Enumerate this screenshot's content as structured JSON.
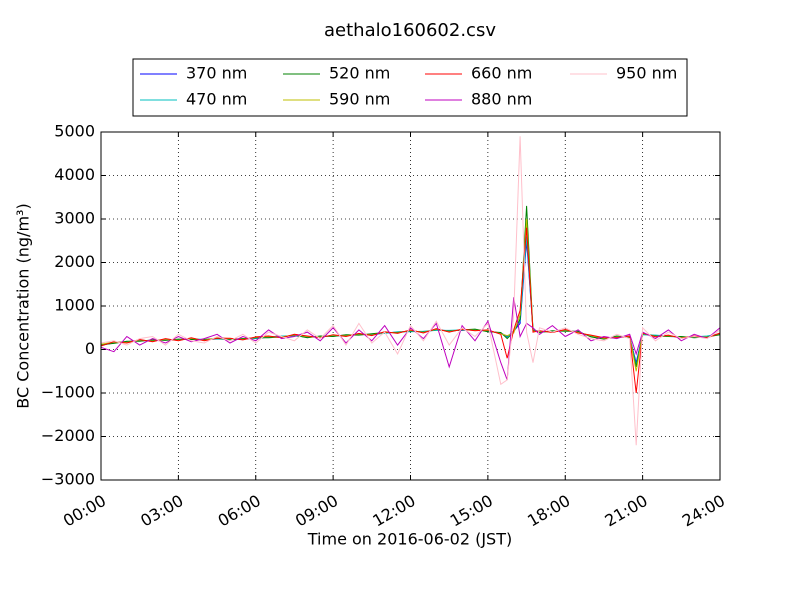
{
  "chart_data": {
    "type": "line",
    "title": "aethalo160602.csv",
    "xlabel": "Time on 2016-06-02 (JST)",
    "ylabel": "BC Concentration (ng/m³)",
    "x": [
      0,
      0.5,
      1,
      1.5,
      2,
      2.5,
      3,
      3.5,
      4,
      4.5,
      5,
      5.5,
      6,
      6.5,
      7,
      7.5,
      8,
      8.5,
      9,
      9.5,
      10,
      10.5,
      11,
      11.5,
      12,
      12.5,
      13,
      13.5,
      14,
      14.5,
      15,
      15.5,
      15.75,
      16,
      16.25,
      16.5,
      16.75,
      17,
      17.5,
      18,
      18.5,
      19,
      19.5,
      20,
      20.5,
      20.75,
      21,
      21.5,
      22,
      22.5,
      23,
      23.5,
      24
    ],
    "xlim": [
      0,
      24
    ],
    "xticks": [
      {
        "value": 0,
        "label": "00:00"
      },
      {
        "value": 3,
        "label": "03:00"
      },
      {
        "value": 6,
        "label": "06:00"
      },
      {
        "value": 9,
        "label": "09:00"
      },
      {
        "value": 12,
        "label": "12:00"
      },
      {
        "value": 15,
        "label": "15:00"
      },
      {
        "value": 18,
        "label": "18:00"
      },
      {
        "value": 21,
        "label": "21:00"
      },
      {
        "value": 24,
        "label": "24:00"
      }
    ],
    "ylim": [
      -3000,
      5000
    ],
    "yticks": [
      {
        "value": -3000,
        "label": "−3000"
      },
      {
        "value": -2000,
        "label": "−2000"
      },
      {
        "value": -1000,
        "label": "−1000"
      },
      0,
      1000,
      2000,
      3000,
      4000,
      5000
    ],
    "grid": true,
    "legend": "upper center",
    "series": [
      {
        "name": "370 nm",
        "color": "#0000ff",
        "values": [
          100,
          150,
          180,
          200,
          210,
          220,
          230,
          240,
          220,
          250,
          230,
          240,
          260,
          280,
          300,
          320,
          280,
          300,
          310,
          330,
          340,
          350,
          380,
          400,
          420,
          410,
          450,
          430,
          440,
          460,
          420,
          380,
          300,
          420,
          600,
          2500,
          450,
          400,
          420,
          430,
          410,
          300,
          250,
          300,
          280,
          -300,
          350,
          320,
          300,
          290,
          280,
          300,
          350
        ]
      },
      {
        "name": "470 nm",
        "color": "#00bfbf",
        "values": [
          90,
          160,
          170,
          210,
          200,
          230,
          220,
          250,
          230,
          240,
          240,
          250,
          250,
          290,
          310,
          310,
          290,
          290,
          320,
          320,
          350,
          340,
          370,
          410,
          410,
          420,
          440,
          440,
          450,
          450,
          430,
          370,
          280,
          430,
          650,
          2600,
          460,
          410,
          410,
          440,
          400,
          310,
          260,
          290,
          290,
          -350,
          340,
          330,
          310,
          280,
          290,
          310,
          360
        ]
      },
      {
        "name": "520 nm",
        "color": "#008000",
        "values": [
          110,
          140,
          190,
          190,
          220,
          210,
          240,
          230,
          230,
          260,
          220,
          250,
          270,
          270,
          290,
          330,
          270,
          310,
          300,
          340,
          330,
          360,
          390,
          390,
          430,
          400,
          460,
          420,
          450,
          470,
          410,
          390,
          250,
          400,
          700,
          3300,
          440,
          390,
          430,
          420,
          420,
          290,
          240,
          310,
          270,
          -400,
          360,
          310,
          300,
          300,
          270,
          290,
          340
        ]
      },
      {
        "name": "590 nm",
        "color": "#bfbf00",
        "values": [
          120,
          170,
          160,
          220,
          190,
          240,
          210,
          260,
          210,
          270,
          250,
          230,
          280,
          300,
          280,
          340,
          300,
          280,
          330,
          310,
          360,
          330,
          400,
          380,
          440,
          390,
          470,
          410,
          460,
          440,
          440,
          360,
          320,
          380,
          800,
          3000,
          420,
          420,
          400,
          450,
          390,
          320,
          260,
          280,
          300,
          -500,
          370,
          300,
          320,
          270,
          300,
          280,
          370
        ]
      },
      {
        "name": "660 nm",
        "color": "#ff0000",
        "values": [
          80,
          180,
          150,
          230,
          180,
          250,
          200,
          270,
          200,
          260,
          260,
          220,
          290,
          310,
          270,
          350,
          310,
          270,
          340,
          300,
          370,
          320,
          410,
          370,
          450,
          380,
          480,
          400,
          470,
          430,
          450,
          350,
          -200,
          450,
          900,
          2800,
          400,
          430,
          390,
          460,
          380,
          330,
          270,
          270,
          310,
          -1000,
          380,
          290,
          330,
          260,
          310,
          270,
          380
        ]
      },
      {
        "name": "880 nm",
        "color": "#bf00bf",
        "values": [
          50,
          -50,
          300,
          100,
          250,
          150,
          300,
          180,
          250,
          350,
          150,
          300,
          200,
          450,
          250,
          300,
          400,
          200,
          500,
          150,
          450,
          200,
          550,
          100,
          500,
          250,
          600,
          -400,
          550,
          200,
          650,
          -300,
          -700,
          1200,
          300,
          600,
          500,
          350,
          550,
          300,
          450,
          200,
          300,
          250,
          350,
          -100,
          400,
          250,
          450,
          200,
          350,
          250,
          500
        ]
      },
      {
        "name": "950 nm",
        "color": "#ffc0cb",
        "values": [
          150,
          200,
          100,
          250,
          300,
          100,
          350,
          200,
          150,
          300,
          200,
          350,
          150,
          400,
          300,
          200,
          450,
          250,
          550,
          100,
          600,
          150,
          400,
          -100,
          550,
          200,
          650,
          100,
          500,
          300,
          600,
          -800,
          -700,
          800,
          4900,
          400,
          -300,
          500,
          400,
          500,
          350,
          250,
          200,
          350,
          250,
          -2200,
          500,
          200,
          400,
          250,
          300,
          250,
          450
        ]
      }
    ]
  }
}
